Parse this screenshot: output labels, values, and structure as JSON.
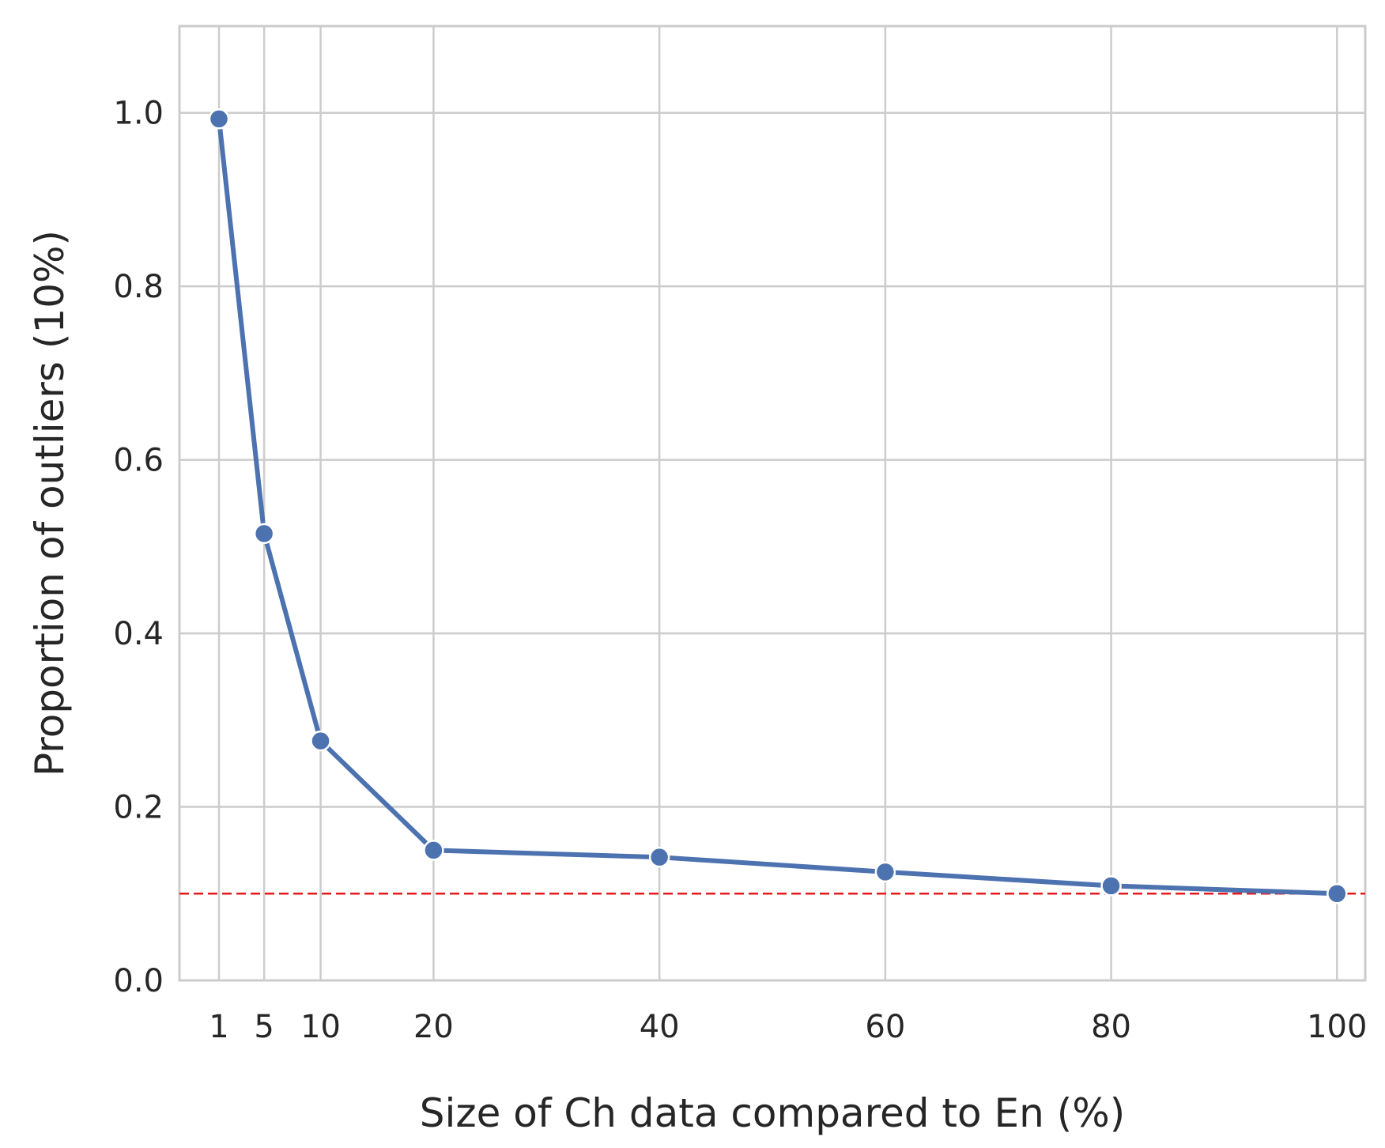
{
  "chart_data": {
    "type": "line",
    "xlabel": "Size of Ch data compared to En (%)",
    "ylabel": "Proportion of outliers (10%)",
    "xlim": [
      -2.5,
      102.5
    ],
    "ylim": [
      0.0,
      1.1
    ],
    "xticks": [
      1,
      5,
      10,
      20,
      40,
      60,
      80,
      100
    ],
    "yticks": [
      0.0,
      0.2,
      0.4,
      0.6,
      0.8,
      1.0
    ],
    "grid": true,
    "legend": "none",
    "series": [
      {
        "x": [
          1,
          5,
          10,
          20,
          40,
          60,
          80,
          100
        ],
        "values": [
          0.993,
          0.515,
          0.276,
          0.15,
          0.142,
          0.125,
          0.109,
          0.1
        ],
        "color": "#4c72b0"
      }
    ],
    "reference_line": {
      "y": 0.1,
      "color": "#e41a1c",
      "style": "dashed"
    }
  }
}
